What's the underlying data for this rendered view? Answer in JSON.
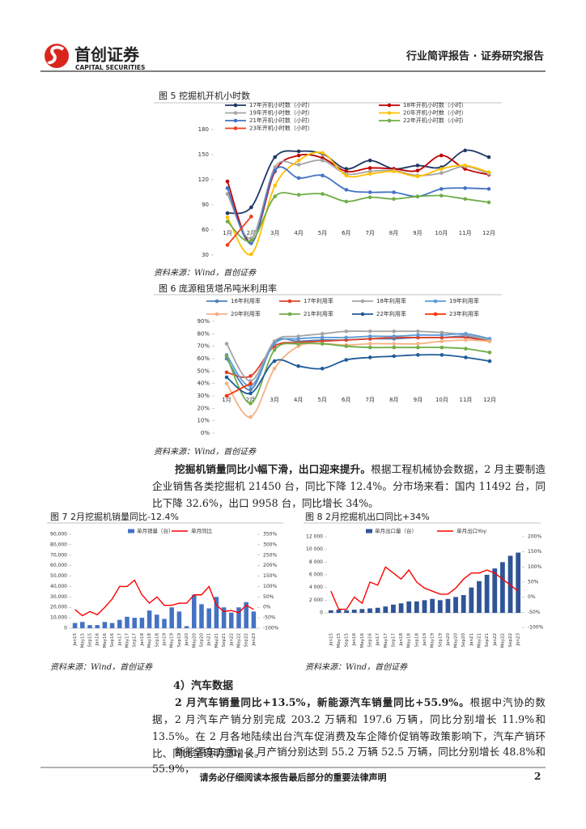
{
  "header": {
    "brand": "首创证券",
    "brand_en": "CAPITAL SECURITIES",
    "report_type": "行业简评报告 · 证券研究报告"
  },
  "chart_data": [
    {
      "type": "line",
      "title": "图 5 挖掘机开机小时数",
      "source": "资料来源：Wind，首创证券",
      "categories": [
        "1月",
        "2月",
        "3月",
        "4月",
        "5月",
        "6月",
        "7月",
        "8月",
        "9月",
        "10月",
        "11月",
        "12月"
      ],
      "ylim": [
        30,
        180
      ],
      "yticks": [
        30,
        60,
        90,
        120,
        150,
        180
      ],
      "series": [
        {
          "name": "17年开机小时数（小时）",
          "color": "#1f3864",
          "values": [
            80,
            87,
            147,
            154,
            151,
            133,
            143,
            133,
            137,
            135,
            155,
            147
          ]
        },
        {
          "name": "18年开机小时数（小时）",
          "color": "#c00000",
          "values": [
            118,
            45,
            130,
            149,
            146,
            130,
            134,
            133,
            131,
            149,
            133,
            126
          ]
        },
        {
          "name": "19年开机小时数（小时）",
          "color": "#a5a5a5",
          "values": [
            103,
            50,
            135,
            138,
            143,
            127,
            130,
            131,
            125,
            128,
            136,
            127
          ]
        },
        {
          "name": "20年开机小时数（小时）",
          "color": "#ffc000",
          "values": [
            75,
            31,
            113,
            143,
            152,
            125,
            127,
            130,
            124,
            133,
            137,
            129
          ]
        },
        {
          "name": "21年开机小时数（小时）",
          "color": "#4472c4",
          "values": [
            110,
            44,
            131,
            122,
            125,
            108,
            105,
            105,
            100,
            109,
            110,
            109
          ]
        },
        {
          "name": "22年开机小时数（小时）",
          "color": "#70ad47",
          "values": [
            70,
            47,
            100,
            102,
            103,
            94,
            99,
            97,
            100,
            101,
            97,
            93
          ]
        },
        {
          "name": "23年开机小时数（小时）",
          "color": "#f0401c",
          "values": [
            42,
            76,
            null,
            null,
            null,
            null,
            null,
            null,
            null,
            null,
            null,
            null
          ]
        }
      ]
    },
    {
      "type": "line",
      "title": "图 6 庞源租赁塔吊吨米利用率",
      "source": "资料来源：Wind，首创证券",
      "categories": [
        "1月",
        "2月",
        "3月",
        "4月",
        "5月",
        "6月",
        "7月",
        "8月",
        "9月",
        "10月",
        "11月",
        "12月"
      ],
      "ylim": [
        0,
        90
      ],
      "yticks": [
        {
          "value": 0,
          "label": "0%"
        },
        {
          "value": 10,
          "label": "10%"
        },
        {
          "value": 20,
          "label": "20%"
        },
        {
          "value": 30,
          "label": "30%"
        },
        {
          "value": 40,
          "label": "40%"
        },
        {
          "value": 50,
          "label": "50%"
        },
        {
          "value": 60,
          "label": "60%"
        },
        {
          "value": 70,
          "label": "70%"
        },
        {
          "value": 80,
          "label": "80%"
        },
        {
          "value": 90,
          "label": "90%"
        }
      ],
      "series": [
        {
          "name": "16年利用率",
          "color": "#4f81bd",
          "values": [
            60,
            35,
            73,
            74,
            75,
            75,
            76,
            76,
            77,
            77,
            78,
            75
          ]
        },
        {
          "name": "17年利用率",
          "color": "#e0402a",
          "values": [
            49,
            46,
            70,
            73,
            74,
            75,
            76,
            77,
            77,
            77,
            77,
            74
          ]
        },
        {
          "name": "18年利用率",
          "color": "#a5a5a5",
          "values": [
            72,
            42,
            74,
            78,
            80,
            82,
            82,
            82,
            82,
            81,
            79,
            75
          ]
        },
        {
          "name": "19年利用率",
          "color": "#5b9bd5",
          "values": [
            63,
            38,
            72,
            76,
            77,
            77,
            78,
            78,
            79,
            79,
            80,
            76
          ]
        },
        {
          "name": "20年利用率",
          "color": "#f4b183",
          "values": [
            40,
            13,
            52,
            70,
            72,
            71,
            72,
            72,
            72,
            74,
            75,
            74
          ]
        },
        {
          "name": "21年利用率",
          "color": "#70ad47",
          "values": [
            62,
            24,
            67,
            72,
            72,
            70,
            69,
            69,
            69,
            69,
            68,
            65
          ]
        },
        {
          "name": "22年利用率",
          "color": "#1f5c99",
          "values": [
            45,
            32,
            58,
            54,
            52,
            59,
            61,
            62,
            63,
            63,
            61,
            58
          ]
        },
        {
          "name": "23年利用率",
          "color": "#ff3300",
          "values": [
            30,
            40,
            null,
            null,
            null,
            null,
            null,
            null,
            null,
            null,
            null,
            null
          ]
        }
      ]
    },
    {
      "type": "combo",
      "title": "图 7 2月挖掘机销量同比-12.4%",
      "source": "资料来源：Wind，首创证券",
      "categories": [
        "Jan15",
        "May15",
        "Sep15",
        "Jan16",
        "May16",
        "Sep16",
        "Jan17",
        "May17",
        "Sep17",
        "Jan18",
        "May18",
        "Sep18",
        "Jan19",
        "May19",
        "Sep19",
        "Jan20",
        "May20",
        "Sep20",
        "Jan21",
        "May21",
        "Sep21",
        "Jan22",
        "May22",
        "Sep22",
        "Jan23"
      ],
      "ylim": [
        0,
        90000
      ],
      "yticks": [
        0,
        {
          "value": 10000,
          "label": "10,000"
        },
        {
          "value": 20000,
          "label": "20,000"
        },
        {
          "value": 30000,
          "label": "30,000"
        },
        {
          "value": 40000,
          "label": "40,000"
        },
        {
          "value": 50000,
          "label": "50,000"
        },
        {
          "value": 60000,
          "label": "60,000"
        },
        {
          "value": 70000,
          "label": "70,000"
        },
        {
          "value": 80000,
          "label": "80,000"
        },
        {
          "value": 90000,
          "label": "90,000"
        }
      ],
      "y2lim": [
        -100,
        350
      ],
      "y2ticks": [
        {
          "value": -100,
          "label": "-100%"
        },
        {
          "value": -50,
          "label": "-50%"
        },
        {
          "value": 0,
          "label": "0%"
        },
        {
          "value": 50,
          "label": "50%"
        },
        {
          "value": 100,
          "label": "100%"
        },
        {
          "value": 150,
          "label": "150%"
        },
        {
          "value": 200,
          "label": "200%"
        },
        {
          "value": 250,
          "label": "250%"
        },
        {
          "value": 300,
          "label": "300%"
        },
        {
          "value": 350,
          "label": "350%"
        }
      ],
      "series": [
        {
          "name": "单月销量（台）",
          "type": "bar",
          "color": "#4472c4",
          "values": [
            5000,
            6000,
            3000,
            3000,
            6000,
            5000,
            8000,
            11000,
            10000,
            10000,
            17000,
            13000,
            9000,
            20000,
            16000,
            2000,
            32000,
            23000,
            19000,
            30000,
            20000,
            15000,
            20000,
            25000,
            16000
          ]
        },
        {
          "name": "单月同比",
          "type": "line",
          "axis": "y2",
          "color": "#ff0000",
          "values": [
            -10,
            -40,
            -20,
            -35,
            0,
            40,
            100,
            100,
            130,
            60,
            20,
            50,
            10,
            10,
            20,
            20,
            60,
            60,
            100,
            10,
            -20,
            -15,
            -25,
            10,
            -10
          ]
        }
      ]
    },
    {
      "type": "combo",
      "title": "图 8 2月挖掘机出口同比+34%",
      "source": "资料来源：Wind，首创证券",
      "categories": [
        "Jan15",
        "May15",
        "Sep15",
        "Jan16",
        "May16",
        "Sep16",
        "Jan17",
        "May17",
        "Sep17",
        "Jan18",
        "May18",
        "Sep18",
        "Jan19",
        "May19",
        "Sep19",
        "Jan20",
        "May20",
        "Sep20",
        "Jan21",
        "May21",
        "Sep21",
        "Jan22",
        "May22",
        "Sep22",
        "Jan23"
      ],
      "ylim": [
        0,
        12000
      ],
      "yticks": [
        0,
        {
          "value": 2000,
          "label": "2 000"
        },
        {
          "value": 4000,
          "label": "4 000"
        },
        {
          "value": 6000,
          "label": "6 000"
        },
        {
          "value": 8000,
          "label": "8 000"
        },
        {
          "value": 10000,
          "label": "10 000"
        },
        {
          "value": 12000,
          "label": "12 000"
        }
      ],
      "y2lim": [
        -100,
        200
      ],
      "y2ticks": [
        {
          "value": -100,
          "label": "-100%"
        },
        {
          "value": -50,
          "label": "-50%"
        },
        {
          "value": 0,
          "label": "0%"
        },
        {
          "value": 50,
          "label": "50%"
        },
        {
          "value": 100,
          "label": "100%"
        },
        {
          "value": 150,
          "label": "150%"
        },
        {
          "value": 200,
          "label": "200%"
        }
      ],
      "series": [
        {
          "name": "单月出口量（台）",
          "type": "bar",
          "color": "#2f5597",
          "values": [
            400,
            500,
            400,
            500,
            600,
            700,
            800,
            1000,
            1300,
            1500,
            1800,
            1800,
            2000,
            2200,
            2000,
            2200,
            2500,
            2800,
            4000,
            5000,
            6000,
            7000,
            8000,
            9000,
            9500
          ]
        },
        {
          "name": "单月出口Yoy",
          "type": "line",
          "axis": "y2",
          "color": "#ff0000",
          "values": [
            20,
            -40,
            -40,
            0,
            -20,
            50,
            40,
            100,
            80,
            60,
            90,
            50,
            30,
            20,
            10,
            10,
            30,
            60,
            80,
            80,
            90,
            80,
            60,
            40,
            20
          ]
        }
      ]
    }
  ],
  "paragraphs": [
    {
      "lead": "挖掘机销量同比小幅下滑，出口迎来提升。",
      "text": "根据工程机械协会数据，2 月主要制造企业销售各类挖掘机 21450 台，同比下降 12.4%。分市场来看：国内 11492 台，同比下降 32.6%，出口 9958 台，同比增长 34%。"
    },
    {
      "lead": "2 月汽车销量同比+13.5%，新能源汽车销量同比+55.9%。",
      "text": "根据中汽协的数据，2 月汽车产销分别完成 203.2 万辆和 197.6 万辆，同比分别增长 11.9%和 13.5%。在 2 月各地陆续出台汽车促消费及车企降价促销等政策影响下，汽车产销环比、同比呈现明显增长。"
    },
    {
      "text": "新能源车方面，2 月产销分别达到 55.2 万辆 52.5 万辆，同比分别增长 48.8%和 55.9%，"
    }
  ],
  "section": "4）汽车数据",
  "footer": {
    "notice": "请务必仔细阅读本报告最后部分的重要法律声明",
    "page": "2"
  }
}
